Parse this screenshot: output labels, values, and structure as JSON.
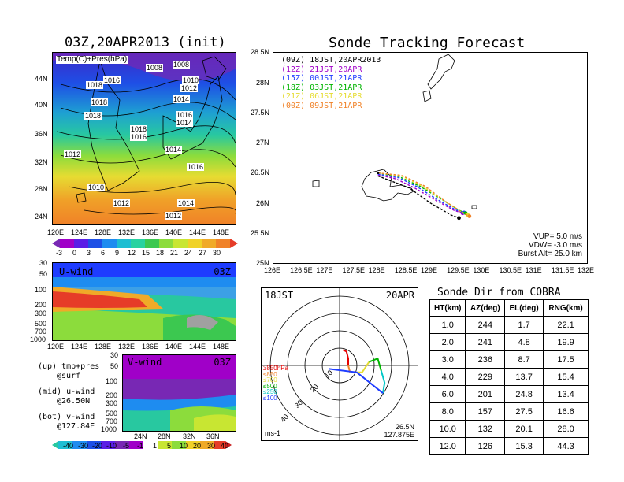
{
  "left_title": "03Z,20APR2013 (init)",
  "right_title": "Sonde Tracking Forecast",
  "map1": {
    "label": "Temp(C)+Pres(hPa)",
    "lat_ticks": [
      "44N",
      "40N",
      "36N",
      "32N",
      "28N",
      "24N"
    ],
    "lon_ticks": [
      "120E",
      "124E",
      "128E",
      "132E",
      "136E",
      "140E",
      "144E",
      "148E"
    ],
    "isobar_labels": [
      "1008",
      "1008",
      "1016",
      "1018",
      "1010",
      "1012",
      "1018",
      "1014",
      "1018",
      "1016",
      "1018",
      "1016",
      "1014",
      "1014",
      "1012",
      "1016",
      "1010",
      "1012",
      "1012",
      "1014"
    ],
    "colorbar_labels": [
      "-3",
      "0",
      "3",
      "6",
      "9",
      "12",
      "15",
      "18",
      "21",
      "24",
      "27",
      "30"
    ]
  },
  "uwind": {
    "label": "U-wind",
    "time": "03Z",
    "p_ticks": [
      "30",
      "50",
      "100",
      "200",
      "300",
      "500",
      "700",
      "1000"
    ],
    "lon_ticks": [
      "120E",
      "124E",
      "128E",
      "132E",
      "136E",
      "140E",
      "144E",
      "148E"
    ]
  },
  "vwind": {
    "label": "V-wind",
    "time": "03Z",
    "p_ticks": [
      "30",
      "50",
      "100",
      "200",
      "300",
      "500",
      "700",
      "1000"
    ],
    "lat_ticks": [
      "24N",
      "28N",
      "32N",
      "36N"
    ],
    "colorbar_labels": [
      "-40",
      "-30",
      "-20",
      "-10",
      "-5",
      "-1",
      "1",
      "5",
      "10",
      "20",
      "30",
      "40"
    ]
  },
  "legend_notes": [
    {
      "line1": "(up) tmp+pres",
      "line2": "@surf"
    },
    {
      "line1": "(mid) u-wind",
      "line2": "@26.50N"
    },
    {
      "line1": "(bot) v-wind",
      "line2": "@127.84E"
    }
  ],
  "track": {
    "lat_ticks": [
      "28.5N",
      "28N",
      "27.5N",
      "27N",
      "26.5N",
      "26N",
      "25.5N",
      "25N"
    ],
    "lon_ticks": [
      "126E",
      "126.5E",
      "127E",
      "127.5E",
      "128E",
      "128.5E",
      "129E",
      "129.5E",
      "130E",
      "130.5E",
      "131E",
      "131.5E",
      "132E"
    ],
    "legend": [
      {
        "label": "(09Z) 18JST,20APR2013",
        "color": "#000000"
      },
      {
        "label": "(12Z) 21JST,20APR",
        "color": "#a000c8"
      },
      {
        "label": "(15Z) 00JST,21APR",
        "color": "#1e3cff"
      },
      {
        "label": "(18Z) 03JST,21APR",
        "color": "#00b400"
      },
      {
        "label": "(21Z) 06JST,21APR",
        "color": "#e6dc32"
      },
      {
        "label": "(00Z) 09JST,21APR",
        "color": "#f08228"
      }
    ],
    "params": [
      "VUP= 5.0 m/s",
      "VDW= -3.0 m/s",
      "Burst Alt= 25.0 km"
    ]
  },
  "polar": {
    "time_label": "18JST",
    "date_label": "20APR",
    "levels": [
      {
        "label": "≥850hPa",
        "color": "#e60000"
      },
      {
        "label": "≤850",
        "color": "#f08228"
      },
      {
        "label": "≤700",
        "color": "#e6dc32"
      },
      {
        "label": "≤500",
        "color": "#00b400"
      },
      {
        "label": "≤250",
        "color": "#00c8c8"
      },
      {
        "label": "≤100",
        "color": "#1e3cff"
      }
    ],
    "ring_labels": [
      "10",
      "20",
      "30",
      "40"
    ],
    "units": "ms-1",
    "pos_line1": "26.5N",
    "pos_line2": "127.875E"
  },
  "sonde_table": {
    "title": "Sonde Dir from COBRA",
    "headers": [
      "HT(km)",
      "AZ(deg)",
      "EL(deg)",
      "RNG(km)"
    ],
    "rows": [
      [
        "1.0",
        "244",
        "1.7",
        "22.1"
      ],
      [
        "2.0",
        "241",
        "4.8",
        "19.9"
      ],
      [
        "3.0",
        "236",
        "8.7",
        "17.5"
      ],
      [
        "4.0",
        "229",
        "13.7",
        "15.4"
      ],
      [
        "6.0",
        "201",
        "24.8",
        "13.4"
      ],
      [
        "8.0",
        "157",
        "27.5",
        "16.6"
      ],
      [
        "10.0",
        "132",
        "20.1",
        "28.0"
      ],
      [
        "12.0",
        "126",
        "15.3",
        "44.3"
      ]
    ]
  },
  "chart_data": [
    {
      "type": "line",
      "subtype": "map-trajectory",
      "title": "Sonde Tracking Forecast",
      "xlim": [
        126,
        132
      ],
      "ylim": [
        25,
        28.5
      ],
      "launch_point": [
        128.0,
        26.5
      ],
      "series": [
        {
          "name": "(09Z) 18JST,20APR2013",
          "color": "#000000",
          "points": [
            [
              128.0,
              26.45
            ],
            [
              128.3,
              26.35
            ],
            [
              128.6,
              26.25
            ],
            [
              129.0,
              26.0
            ],
            [
              129.4,
              25.8
            ],
            [
              129.55,
              25.75
            ]
          ]
        },
        {
          "name": "(12Z) 21JST,20APR",
          "color": "#a000c8",
          "points": [
            [
              128.0,
              26.47
            ],
            [
              128.35,
              26.4
            ],
            [
              128.7,
              26.25
            ],
            [
              129.1,
              26.05
            ],
            [
              129.45,
              25.88
            ],
            [
              129.62,
              25.83
            ]
          ]
        },
        {
          "name": "(15Z) 00JST,21APR",
          "color": "#1e3cff",
          "points": [
            [
              128.0,
              26.48
            ],
            [
              128.4,
              26.42
            ],
            [
              128.75,
              26.27
            ],
            [
              129.15,
              26.05
            ],
            [
              129.5,
              25.88
            ],
            [
              129.65,
              25.84
            ]
          ]
        },
        {
          "name": "(18Z) 03JST,21APR",
          "color": "#00b400",
          "points": [
            [
              128.0,
              26.5
            ],
            [
              128.4,
              26.44
            ],
            [
              128.8,
              26.28
            ],
            [
              129.2,
              26.07
            ],
            [
              129.55,
              25.88
            ],
            [
              129.68,
              25.83
            ]
          ]
        },
        {
          "name": "(21Z) 06JST,21APR",
          "color": "#e6dc32",
          "points": [
            [
              128.0,
              26.5
            ],
            [
              128.45,
              26.45
            ],
            [
              128.85,
              26.28
            ],
            [
              129.25,
              26.05
            ],
            [
              129.6,
              25.85
            ],
            [
              129.72,
              25.8
            ]
          ]
        },
        {
          "name": "(00Z) 09JST,21APR",
          "color": "#f08228",
          "points": [
            [
              128.0,
              26.5
            ],
            [
              128.45,
              26.46
            ],
            [
              128.9,
              26.28
            ],
            [
              129.3,
              26.02
            ],
            [
              129.65,
              25.82
            ],
            [
              129.75,
              25.78
            ]
          ]
        }
      ]
    },
    {
      "type": "line",
      "subtype": "polar-hodograph",
      "rings": [
        10,
        20,
        30,
        40
      ],
      "segments": [
        {
          "level": "≥850hPa",
          "color": "#e60000",
          "points": [
            [
              5,
              0
            ],
            [
              5,
              -4
            ],
            [
              4,
              -8
            ],
            [
              2,
              -9
            ]
          ]
        },
        {
          "level": "≤850",
          "color": "#f08228",
          "points": [
            [
              5,
              0
            ],
            [
              6,
              4
            ]
          ]
        },
        {
          "level": "≤700",
          "color": "#e6dc32",
          "points": [
            [
              6,
              4
            ],
            [
              13,
              4
            ],
            [
              17,
              -2
            ]
          ]
        },
        {
          "level": "≤500",
          "color": "#00b400",
          "points": [
            [
              17,
              -2
            ],
            [
              22,
              -4
            ],
            [
              24,
              3
            ]
          ]
        },
        {
          "level": "≤250",
          "color": "#00c8c8",
          "points": [
            [
              24,
              3
            ],
            [
              26,
              10
            ],
            [
              25,
              16
            ]
          ]
        },
        {
          "level": "≤100",
          "color": "#1e3cff",
          "points": [
            [
              25,
              16
            ],
            [
              10,
              4
            ],
            [
              -6,
              2
            ]
          ]
        }
      ]
    }
  ]
}
